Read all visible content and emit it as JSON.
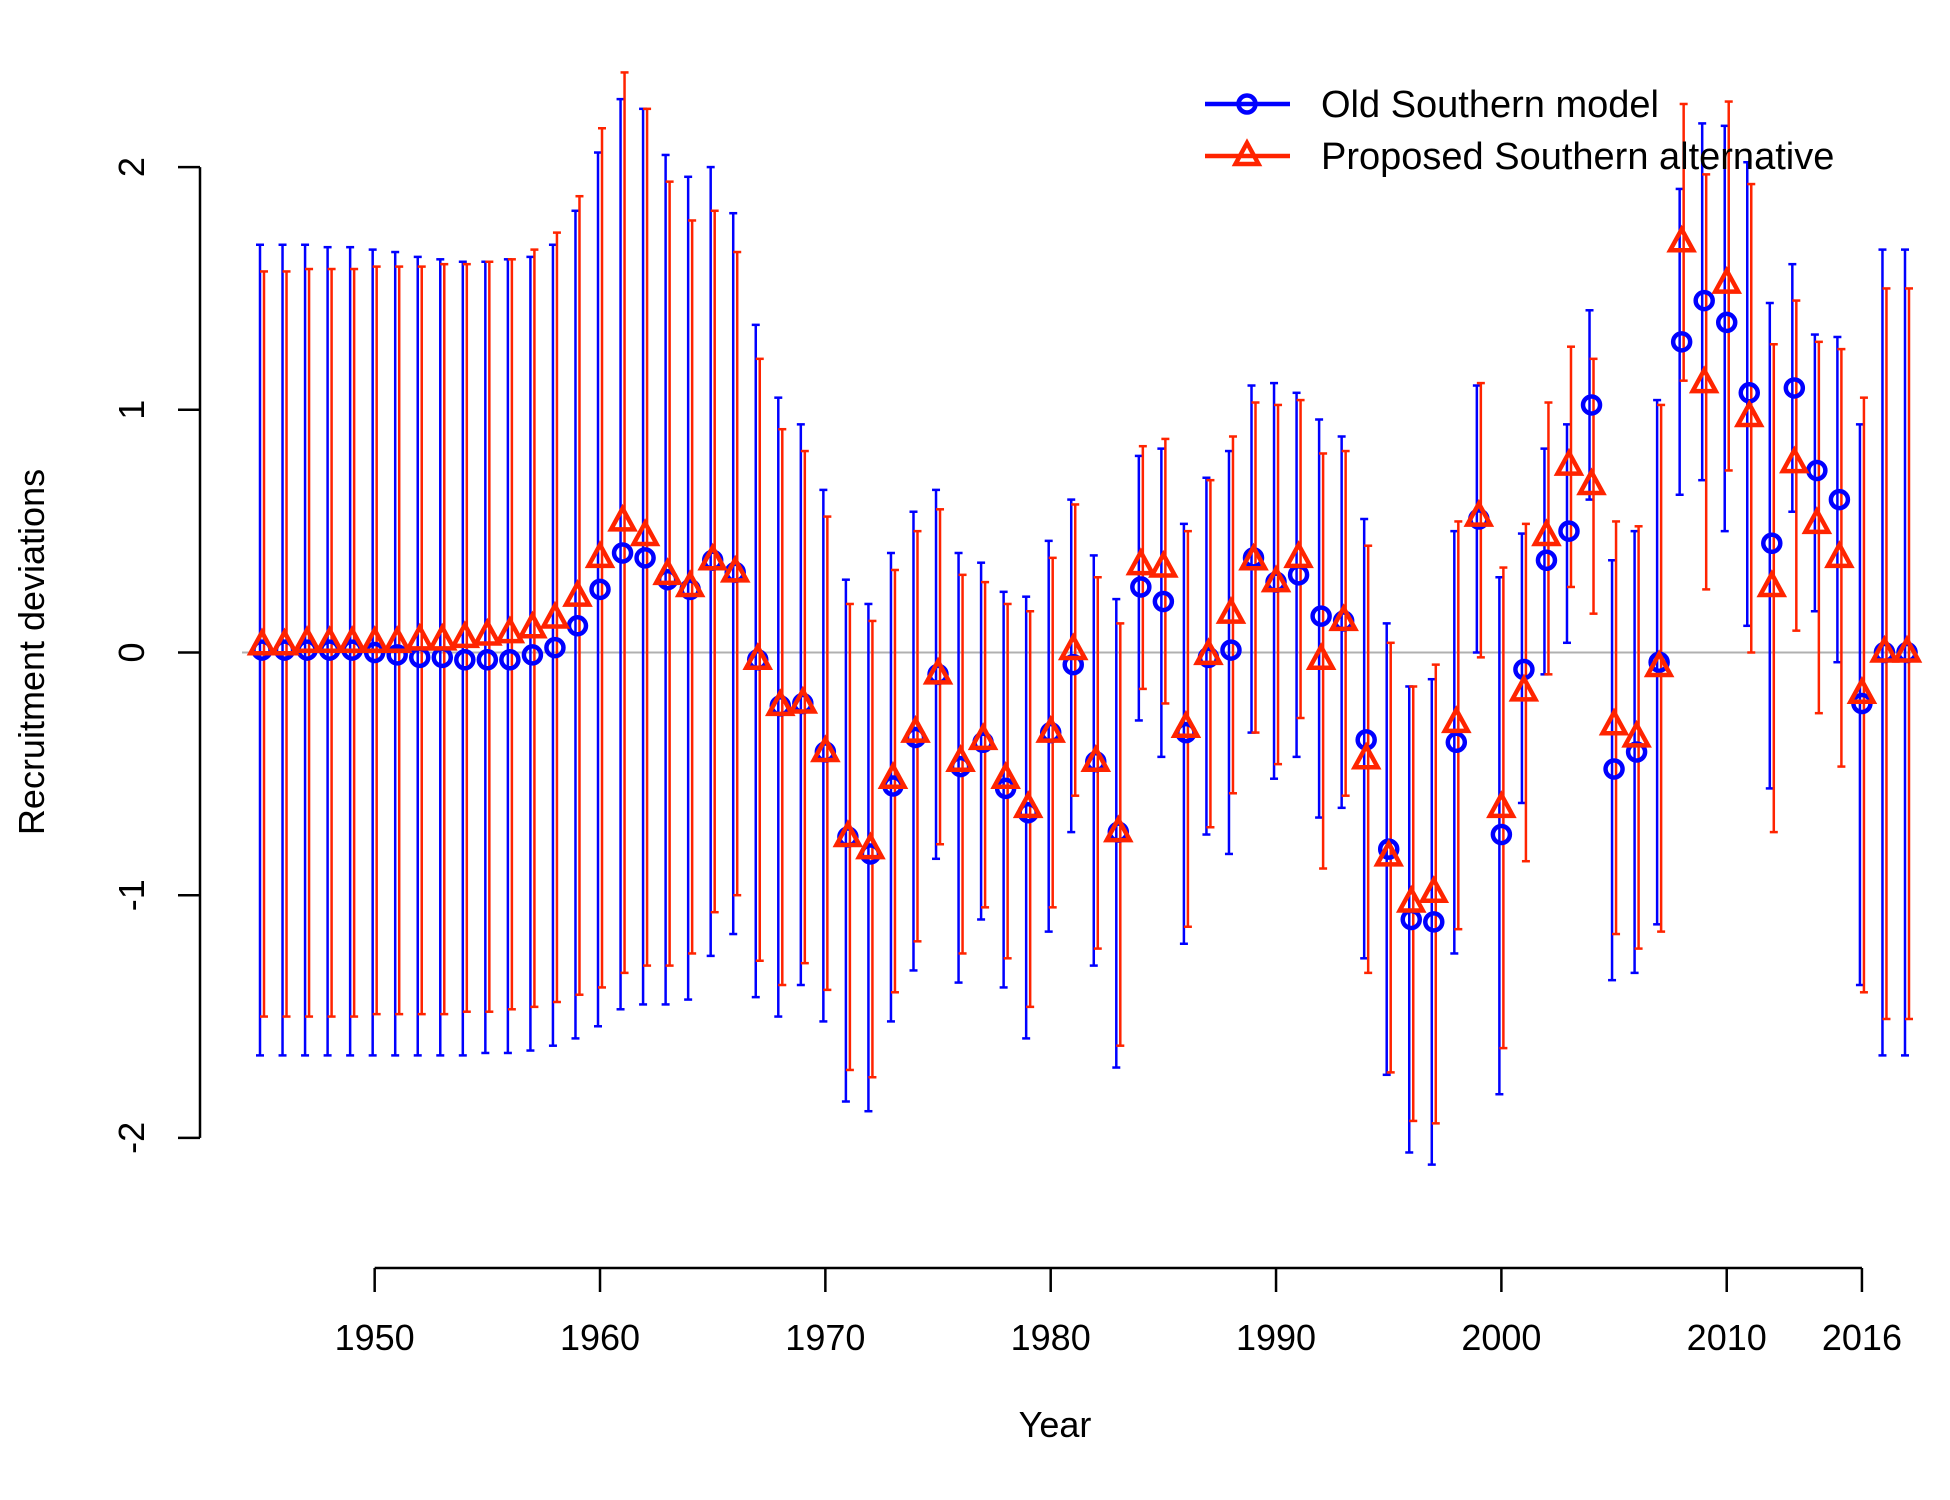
{
  "chart_data": {
    "type": "line",
    "xlabel": "Year",
    "ylabel": "Recruitment deviations",
    "xlim": [
      1945,
      2018
    ],
    "ylim": [
      -2.4,
      2.4
    ],
    "x_ticks": [
      1950,
      1960,
      1970,
      1980,
      1990,
      2000,
      2010,
      2016
    ],
    "y_ticks": [
      -2,
      -1,
      0,
      1,
      2
    ],
    "x_axis_range": [
      1950,
      2016
    ],
    "reference_line": 0,
    "legend_position": "top-right",
    "x": [
      1945,
      1946,
      1947,
      1948,
      1949,
      1950,
      1951,
      1952,
      1953,
      1954,
      1955,
      1956,
      1957,
      1958,
      1959,
      1960,
      1961,
      1962,
      1963,
      1964,
      1965,
      1966,
      1967,
      1968,
      1969,
      1970,
      1971,
      1972,
      1973,
      1974,
      1975,
      1976,
      1977,
      1978,
      1979,
      1980,
      1981,
      1982,
      1983,
      1984,
      1985,
      1986,
      1987,
      1988,
      1989,
      1990,
      1991,
      1992,
      1993,
      1994,
      1995,
      1996,
      1997,
      1998,
      1999,
      2000,
      2001,
      2002,
      2003,
      2004,
      2005,
      2006,
      2007,
      2008,
      2009,
      2010,
      2011,
      2012,
      2013,
      2014,
      2015,
      2016,
      2017,
      2018
    ],
    "series": [
      {
        "name": "Old Southern model",
        "color": "#0000ff",
        "marker": "circle",
        "values": [
          0.01,
          0.01,
          0.01,
          0.01,
          0.01,
          0.0,
          -0.01,
          -0.02,
          -0.02,
          -0.03,
          -0.03,
          -0.03,
          -0.01,
          0.02,
          0.11,
          0.26,
          0.41,
          0.39,
          0.3,
          0.26,
          0.38,
          0.33,
          -0.03,
          -0.22,
          -0.21,
          -0.41,
          -0.76,
          -0.83,
          -0.55,
          -0.35,
          -0.09,
          -0.47,
          -0.37,
          -0.56,
          -0.66,
          -0.33,
          -0.05,
          -0.45,
          -0.74,
          0.27,
          0.21,
          -0.33,
          -0.02,
          0.01,
          0.39,
          0.29,
          0.32,
          0.15,
          0.13,
          -0.36,
          -0.81,
          -1.1,
          -1.11,
          -0.37,
          0.55,
          -0.75,
          -0.07,
          0.38,
          0.5,
          1.02,
          -0.48,
          -0.41,
          -0.04,
          1.28,
          1.45,
          1.36,
          1.07,
          0.45,
          1.09,
          0.75,
          0.63,
          -0.21,
          0.0,
          0.0
        ],
        "upper": [
          1.68,
          1.68,
          1.68,
          1.67,
          1.67,
          1.66,
          1.65,
          1.63,
          1.62,
          1.61,
          1.61,
          1.62,
          1.63,
          1.68,
          1.82,
          2.06,
          2.28,
          2.24,
          2.05,
          1.96,
          2.0,
          1.81,
          1.35,
          1.05,
          0.94,
          0.67,
          0.3,
          0.2,
          0.41,
          0.58,
          0.67,
          0.41,
          0.37,
          0.25,
          0.23,
          0.46,
          0.63,
          0.4,
          0.22,
          0.81,
          0.84,
          0.53,
          0.72,
          0.83,
          1.1,
          1.11,
          1.07,
          0.96,
          0.89,
          0.55,
          0.12,
          -0.14,
          -0.11,
          0.5,
          1.1,
          0.31,
          0.49,
          0.84,
          0.94,
          1.41,
          0.38,
          0.5,
          1.04,
          1.91,
          2.18,
          2.17,
          2.02,
          1.44,
          1.6,
          1.31,
          1.3,
          0.94,
          1.66,
          1.66
        ],
        "lower": [
          -1.66,
          -1.66,
          -1.66,
          -1.66,
          -1.66,
          -1.66,
          -1.66,
          -1.66,
          -1.66,
          -1.66,
          -1.65,
          -1.65,
          -1.64,
          -1.62,
          -1.59,
          -1.54,
          -1.47,
          -1.45,
          -1.45,
          -1.43,
          -1.25,
          -1.16,
          -1.42,
          -1.5,
          -1.37,
          -1.52,
          -1.85,
          -1.89,
          -1.52,
          -1.31,
          -0.85,
          -1.36,
          -1.1,
          -1.38,
          -1.59,
          -1.15,
          -0.74,
          -1.29,
          -1.71,
          -0.28,
          -0.43,
          -1.2,
          -0.75,
          -0.83,
          -0.33,
          -0.52,
          -0.43,
          -0.68,
          -0.64,
          -1.26,
          -1.74,
          -2.06,
          -2.11,
          -1.24,
          0.0,
          -1.82,
          -0.62,
          -0.09,
          0.04,
          0.63,
          -1.35,
          -1.32,
          -1.12,
          0.65,
          0.71,
          0.5,
          0.11,
          -0.56,
          0.58,
          0.17,
          -0.04,
          -1.37,
          -1.66,
          -1.66
        ]
      },
      {
        "name": "Proposed Southern alternative",
        "color": "#ff2400",
        "marker": "triangle",
        "values": [
          0.03,
          0.03,
          0.04,
          0.04,
          0.04,
          0.04,
          0.04,
          0.05,
          0.05,
          0.06,
          0.07,
          0.08,
          0.1,
          0.14,
          0.23,
          0.39,
          0.54,
          0.48,
          0.32,
          0.27,
          0.38,
          0.33,
          -0.03,
          -0.22,
          -0.21,
          -0.41,
          -0.76,
          -0.81,
          -0.52,
          -0.33,
          -0.09,
          -0.45,
          -0.36,
          -0.52,
          -0.64,
          -0.33,
          0.01,
          -0.45,
          -0.74,
          0.36,
          0.35,
          -0.31,
          -0.01,
          0.16,
          0.38,
          0.29,
          0.39,
          -0.03,
          0.13,
          -0.44,
          -0.84,
          -1.03,
          -0.99,
          -0.29,
          0.56,
          -0.64,
          -0.16,
          0.48,
          0.77,
          0.69,
          -0.3,
          -0.35,
          -0.06,
          1.69,
          1.11,
          1.52,
          0.97,
          0.27,
          0.78,
          0.53,
          0.39,
          -0.17,
          0.0,
          0.0
        ],
        "upper": [
          1.57,
          1.57,
          1.58,
          1.58,
          1.58,
          1.59,
          1.59,
          1.59,
          1.6,
          1.6,
          1.61,
          1.62,
          1.66,
          1.73,
          1.88,
          2.16,
          2.39,
          2.24,
          1.94,
          1.78,
          1.82,
          1.65,
          1.21,
          0.92,
          0.83,
          0.56,
          0.2,
          0.13,
          0.34,
          0.5,
          0.59,
          0.32,
          0.29,
          0.2,
          0.17,
          0.39,
          0.61,
          0.31,
          0.12,
          0.85,
          0.88,
          0.5,
          0.71,
          0.89,
          1.03,
          1.02,
          1.04,
          0.82,
          0.83,
          0.44,
          0.04,
          -0.14,
          -0.05,
          0.54,
          1.11,
          0.35,
          0.53,
          1.03,
          1.26,
          1.21,
          0.54,
          0.52,
          1.02,
          2.26,
          1.97,
          2.27,
          1.93,
          1.27,
          1.45,
          1.28,
          1.25,
          1.05,
          1.5,
          1.5
        ],
        "lower": [
          -1.5,
          -1.5,
          -1.5,
          -1.5,
          -1.5,
          -1.49,
          -1.49,
          -1.49,
          -1.49,
          -1.48,
          -1.48,
          -1.47,
          -1.46,
          -1.44,
          -1.41,
          -1.38,
          -1.32,
          -1.29,
          -1.29,
          -1.24,
          -1.07,
          -1.0,
          -1.27,
          -1.37,
          -1.28,
          -1.39,
          -1.72,
          -1.75,
          -1.4,
          -1.19,
          -0.79,
          -1.24,
          -1.05,
          -1.26,
          -1.46,
          -1.05,
          -0.59,
          -1.22,
          -1.62,
          -0.15,
          -0.21,
          -1.13,
          -0.72,
          -0.58,
          -0.33,
          -0.46,
          -0.27,
          -0.89,
          -0.59,
          -1.32,
          -1.73,
          -1.93,
          -1.94,
          -1.14,
          -0.02,
          -1.63,
          -0.86,
          -0.09,
          0.27,
          0.16,
          -1.16,
          -1.22,
          -1.15,
          1.12,
          0.26,
          0.75,
          0.0,
          -0.74,
          0.09,
          -0.25,
          -0.47,
          -1.4,
          -1.51,
          -1.51
        ]
      }
    ]
  }
}
